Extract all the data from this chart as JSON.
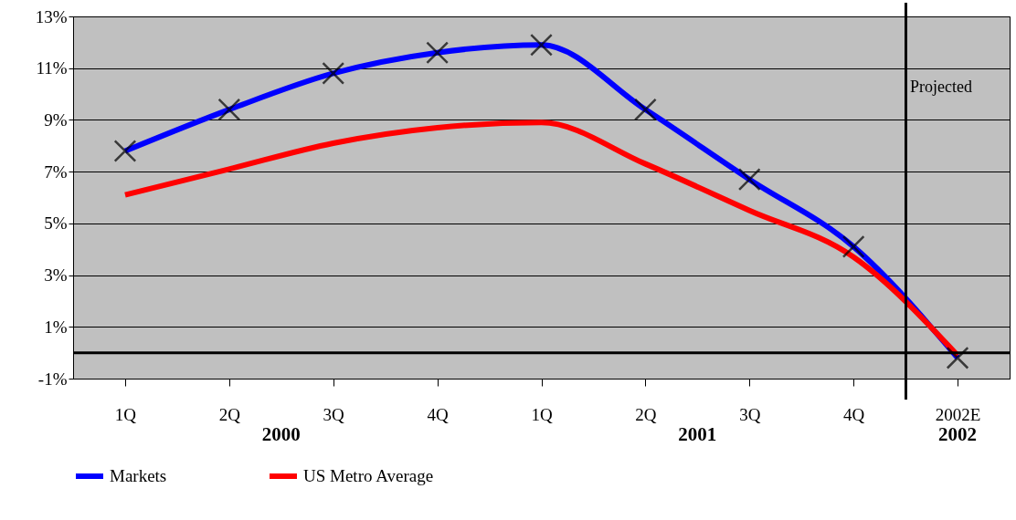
{
  "chart_data": {
    "type": "line",
    "categories": [
      "1Q",
      "2Q",
      "3Q",
      "4Q",
      "1Q",
      "2Q",
      "3Q",
      "4Q",
      "2002E"
    ],
    "series": [
      {
        "name": "Markets",
        "color": "#0000ff",
        "marker": "cross",
        "values": [
          7.8,
          9.4,
          10.8,
          11.6,
          11.9,
          9.4,
          6.7,
          4.1,
          -0.2
        ]
      },
      {
        "name": "US Metro Average",
        "color": "#ff0000",
        "values": [
          6.1,
          7.1,
          8.1,
          8.7,
          8.9,
          7.3,
          5.5,
          3.7,
          -0.1
        ]
      }
    ],
    "ylim": [
      -1,
      13
    ],
    "yticks": [
      {
        "value": -1,
        "label": "-1%"
      },
      {
        "value": 1,
        "label": "1%"
      },
      {
        "value": 3,
        "label": "3%"
      },
      {
        "value": 5,
        "label": "5%"
      },
      {
        "value": 7,
        "label": "7%"
      },
      {
        "value": 9,
        "label": "9%"
      },
      {
        "value": 11,
        "label": "11%"
      },
      {
        "value": 13,
        "label": "13%"
      }
    ],
    "grid": "y",
    "legend": "bottom",
    "ref_lines": [
      {
        "axis": "y",
        "value": 0,
        "color": "#000000"
      }
    ],
    "annotations": [
      "2000",
      "2001",
      "2002",
      "Projected"
    ]
  }
}
